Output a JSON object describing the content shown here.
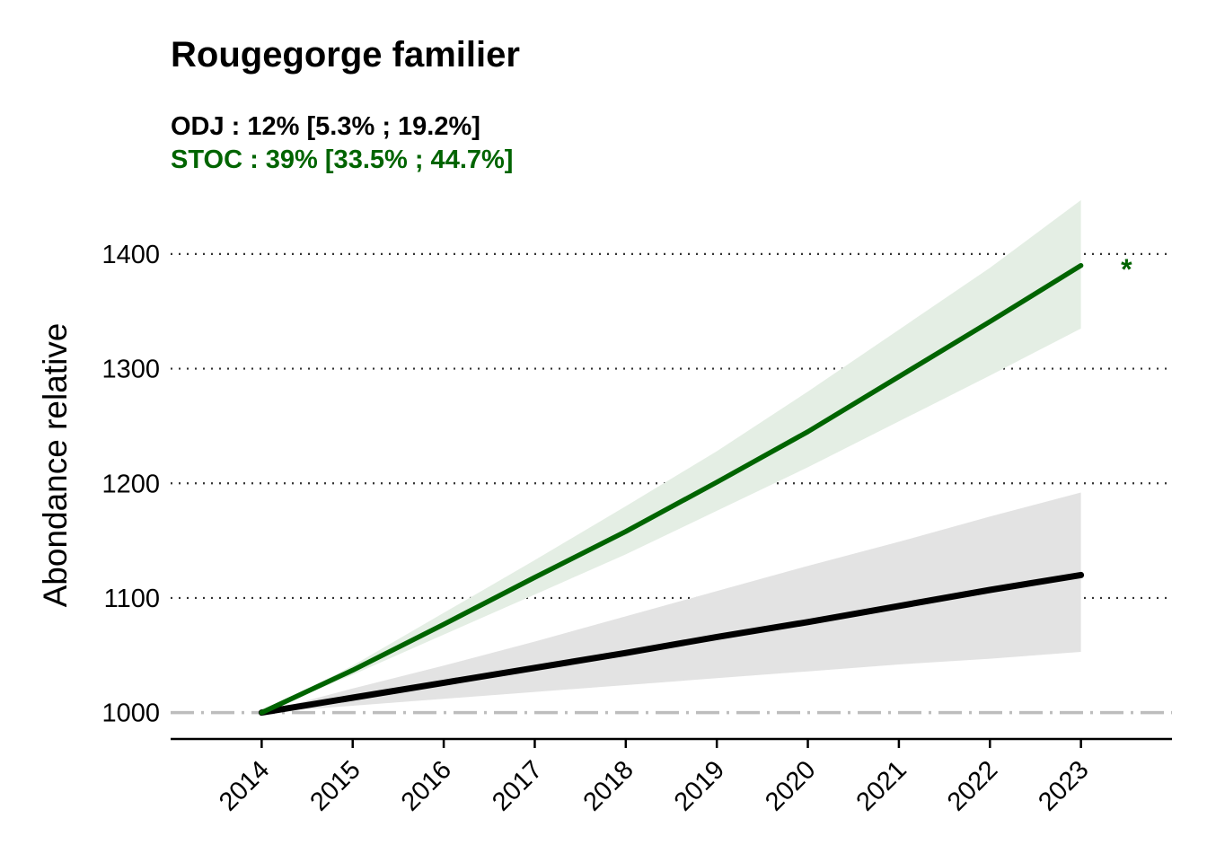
{
  "chart_data": {
    "type": "line",
    "title": "Rougegorge familier",
    "subtitles": [
      {
        "text": "ODJ : 12% [5.3% ; 19.2%]",
        "color": "#000000"
      },
      {
        "text": "STOC : 39% [33.5% ; 44.7%]",
        "color": "#006400"
      }
    ],
    "ylabel": "Abondance relative",
    "xlabel": "",
    "x": [
      2014,
      2015,
      2016,
      2017,
      2018,
      2019,
      2020,
      2021,
      2022,
      2023
    ],
    "x_tick_labels": [
      "2014",
      "2015",
      "2016",
      "2017",
      "2018",
      "2019",
      "2020",
      "2021",
      "2022",
      "2023"
    ],
    "y_ticks": [
      1000,
      1100,
      1200,
      1300,
      1400
    ],
    "xlim": [
      2013,
      2024
    ],
    "ylim": [
      977,
      1461
    ],
    "reference_line": 1000,
    "grid": "horizontal dotted",
    "series": [
      {
        "key": "odj",
        "color": "#000000",
        "band_color": "#e3e3e3",
        "values": [
          1000,
          1013,
          1026,
          1039,
          1052,
          1066,
          1079,
          1093,
          1107,
          1120
        ],
        "lower": [
          1000,
          1006,
          1012,
          1018,
          1024,
          1030,
          1036,
          1042,
          1047,
          1053
        ],
        "upper": [
          1000,
          1021,
          1041,
          1062,
          1084,
          1106,
          1128,
          1149,
          1171,
          1192
        ]
      },
      {
        "key": "stoc",
        "color": "#006400",
        "band_color": "#e4eee4",
        "values": [
          1000,
          1037,
          1077,
          1118,
          1158,
          1201,
          1245,
          1293,
          1341,
          1390
        ],
        "lower": [
          1000,
          1033,
          1068,
          1103,
          1138,
          1176,
          1214,
          1254,
          1294,
          1335
        ],
        "upper": [
          1000,
          1041,
          1087,
          1133,
          1180,
          1228,
          1280,
          1334,
          1388,
          1447
        ]
      }
    ],
    "annotations": [
      {
        "text": "*",
        "x": 2023.5,
        "y": 1392,
        "color": "#006400"
      }
    ]
  }
}
